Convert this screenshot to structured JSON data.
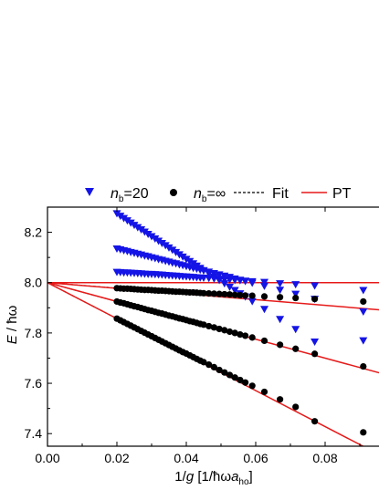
{
  "chart_data": {
    "type": "scatter",
    "xlabel": "1/g [1/ħωa_ho]",
    "ylabel": "E / ħω",
    "xlim": [
      0.0,
      0.1
    ],
    "ylim": [
      7.35,
      8.3
    ],
    "x_ticks": [
      "0.00",
      "0.02",
      "0.04",
      "0.06",
      "0.08"
    ],
    "y_ticks": [
      "7.4",
      "7.6",
      "7.8",
      "8.0",
      "8.2"
    ],
    "legend": {
      "placement": "top",
      "entries": [
        {
          "label": "n_b=20",
          "marker": "triangle-down",
          "color": "#1414e6"
        },
        {
          "label": "n_b=∞",
          "marker": "circle",
          "color": "#000000"
        },
        {
          "label": "Fit",
          "style": "dashed",
          "color": "#000000"
        },
        {
          "label": "PT",
          "style": "solid",
          "color": "#e61919"
        }
      ]
    },
    "series": [
      {
        "name": "n_b=20",
        "marker": "triangle-down",
        "color": "#1414e6",
        "branches": [
          {
            "x": [
              0.02,
              0.021,
              0.022,
              0.023,
              0.024,
              0.025,
              0.026,
              0.027,
              0.028,
              0.029,
              0.03,
              0.031,
              0.032,
              0.033,
              0.034,
              0.035,
              0.036,
              0.037,
              0.038,
              0.039,
              0.04,
              0.041,
              0.042,
              0.043,
              0.044,
              0.045,
              0.0465,
              0.048,
              0.0495,
              0.051,
              0.0525,
              0.054,
              0.0555,
              0.057,
              0.059,
              0.0625,
              0.067,
              0.0715,
              0.077,
              0.091
            ],
            "y": [
              8.275,
              8.265,
              8.256,
              8.247,
              8.238,
              8.229,
              8.22,
              8.211,
              8.202,
              8.193,
              8.184,
              8.175,
              8.166,
              8.157,
              8.148,
              8.139,
              8.13,
              8.121,
              8.112,
              8.103,
              8.094,
              8.085,
              8.076,
              8.067,
              8.058,
              8.049,
              8.036,
              8.023,
              8.01,
              7.997,
              7.983,
              7.97,
              7.957,
              7.944,
              7.926,
              7.895,
              7.855,
              7.815,
              7.765,
              7.77
            ]
          },
          {
            "x": [
              0.02,
              0.021,
              0.022,
              0.023,
              0.024,
              0.025,
              0.026,
              0.027,
              0.028,
              0.029,
              0.03,
              0.031,
              0.032,
              0.033,
              0.034,
              0.035,
              0.036,
              0.037,
              0.038,
              0.039,
              0.04,
              0.041,
              0.042,
              0.043,
              0.044,
              0.045,
              0.0465,
              0.048,
              0.0495,
              0.051,
              0.0525,
              0.054,
              0.0555,
              0.057,
              0.059,
              0.0625,
              0.067,
              0.0715,
              0.077,
              0.091
            ],
            "y": [
              8.135,
              8.132,
              8.128,
              8.125,
              8.121,
              8.118,
              8.114,
              8.111,
              8.107,
              8.104,
              8.1,
              8.097,
              8.093,
              8.09,
              8.086,
              8.083,
              8.079,
              8.076,
              8.072,
              8.069,
              8.065,
              8.062,
              8.058,
              8.055,
              8.051,
              8.048,
              8.043,
              8.037,
              8.032,
              8.027,
              8.022,
              8.016,
              8.011,
              8.006,
              7.999,
              7.987,
              7.971,
              7.955,
              7.935,
              7.885
            ]
          },
          {
            "x": [
              0.02,
              0.021,
              0.022,
              0.023,
              0.024,
              0.025,
              0.026,
              0.027,
              0.028,
              0.029,
              0.03,
              0.031,
              0.032,
              0.033,
              0.034,
              0.035,
              0.036,
              0.037,
              0.038,
              0.039,
              0.04,
              0.041,
              0.042,
              0.043,
              0.044,
              0.045,
              0.0465,
              0.048,
              0.0495,
              0.051,
              0.0525,
              0.054,
              0.0555,
              0.057,
              0.059,
              0.0625,
              0.067,
              0.0715,
              0.077,
              0.091
            ],
            "y": [
              8.042,
              8.041,
              8.04,
              8.04,
              8.039,
              8.038,
              8.037,
              8.036,
              8.035,
              8.034,
              8.034,
              8.033,
              8.032,
              8.031,
              8.03,
              8.029,
              8.028,
              8.027,
              8.026,
              8.025,
              8.024,
              8.023,
              8.022,
              8.021,
              8.02,
              8.019,
              8.018,
              8.016,
              8.015,
              8.013,
              8.012,
              8.01,
              8.009,
              8.007,
              8.005,
              8.002,
              7.997,
              7.993,
              7.988,
              7.97
            ]
          }
        ]
      },
      {
        "name": "n_b=∞",
        "marker": "circle",
        "color": "#000000",
        "branches": [
          {
            "x": [
              0.02,
              0.021,
              0.022,
              0.023,
              0.024,
              0.025,
              0.026,
              0.027,
              0.028,
              0.029,
              0.03,
              0.031,
              0.032,
              0.033,
              0.034,
              0.035,
              0.036,
              0.037,
              0.038,
              0.039,
              0.04,
              0.041,
              0.042,
              0.043,
              0.044,
              0.045,
              0.0465,
              0.048,
              0.0495,
              0.051,
              0.0525,
              0.054,
              0.0555,
              0.057,
              0.059,
              0.0625,
              0.067,
              0.0715,
              0.077,
              0.091
            ],
            "y": [
              7.978,
              7.977,
              7.976,
              7.976,
              7.975,
              7.974,
              7.973,
              7.972,
              7.971,
              7.971,
              7.97,
              7.969,
              7.968,
              7.968,
              7.967,
              7.966,
              7.965,
              7.964,
              7.964,
              7.963,
              7.962,
              7.961,
              7.961,
              7.96,
              7.959,
              7.958,
              7.957,
              7.956,
              7.955,
              7.954,
              7.953,
              7.951,
              7.95,
              7.949,
              7.948,
              7.945,
              7.942,
              7.939,
              7.935,
              7.925
            ]
          },
          {
            "x": [
              0.02,
              0.021,
              0.022,
              0.023,
              0.024,
              0.025,
              0.026,
              0.027,
              0.028,
              0.029,
              0.03,
              0.031,
              0.032,
              0.033,
              0.034,
              0.035,
              0.036,
              0.037,
              0.038,
              0.039,
              0.04,
              0.041,
              0.042,
              0.043,
              0.044,
              0.045,
              0.0465,
              0.048,
              0.0495,
              0.051,
              0.0525,
              0.054,
              0.0555,
              0.057,
              0.059,
              0.0625,
              0.067,
              0.0715,
              0.077,
              0.091
            ],
            "y": [
              7.925,
              7.921,
              7.918,
              7.914,
              7.91,
              7.906,
              7.903,
              7.899,
              7.895,
              7.891,
              7.888,
              7.884,
              7.88,
              7.877,
              7.873,
              7.869,
              7.866,
              7.862,
              7.858,
              7.855,
              7.851,
              7.847,
              7.844,
              7.84,
              7.836,
              7.833,
              7.827,
              7.822,
              7.816,
              7.811,
              7.805,
              7.8,
              7.794,
              7.789,
              7.782,
              7.769,
              7.753,
              7.737,
              7.717,
              7.667
            ]
          },
          {
            "x": [
              0.02,
              0.021,
              0.022,
              0.023,
              0.024,
              0.025,
              0.026,
              0.027,
              0.028,
              0.029,
              0.03,
              0.031,
              0.032,
              0.033,
              0.034,
              0.035,
              0.036,
              0.037,
              0.038,
              0.039,
              0.04,
              0.041,
              0.042,
              0.043,
              0.044,
              0.045,
              0.0465,
              0.048,
              0.0495,
              0.051,
              0.0525,
              0.054,
              0.0555,
              0.057,
              0.059,
              0.0625,
              0.067,
              0.0715,
              0.077,
              0.091
            ],
            "y": [
              7.857,
              7.85,
              7.843,
              7.836,
              7.829,
              7.822,
              7.815,
              7.808,
              7.801,
              7.794,
              7.787,
              7.78,
              7.773,
              7.766,
              7.759,
              7.752,
              7.745,
              7.738,
              7.731,
              7.724,
              7.718,
              7.711,
              7.704,
              7.697,
              7.69,
              7.684,
              7.674,
              7.664,
              7.653,
              7.643,
              7.633,
              7.623,
              7.613,
              7.603,
              7.59,
              7.566,
              7.536,
              7.506,
              7.449,
              7.405
            ]
          }
        ]
      },
      {
        "name": "Fit",
        "style": "dashed",
        "color": "#000000",
        "lines": [
          {
            "x": [
              0.0,
              0.02
            ],
            "y": [
              8.0,
              7.978
            ]
          },
          {
            "x": [
              0.0,
              0.02
            ],
            "y": [
              8.0,
              7.925
            ]
          },
          {
            "x": [
              0.0,
              0.02
            ],
            "y": [
              8.0,
              7.857
            ]
          }
        ]
      },
      {
        "name": "PT",
        "style": "solid",
        "color": "#e61919",
        "lines": [
          {
            "x": [
              0.0,
              0.1
            ],
            "y": [
              8.0,
              8.0
            ]
          },
          {
            "x": [
              0.0,
              0.1
            ],
            "y": [
              8.0,
              7.887
            ]
          },
          {
            "x": [
              0.0,
              0.1
            ],
            "y": [
              8.0,
              7.625
            ]
          },
          {
            "x": [
              0.0,
              0.1
            ],
            "y": [
              8.0,
              7.285
            ]
          }
        ]
      }
    ]
  }
}
